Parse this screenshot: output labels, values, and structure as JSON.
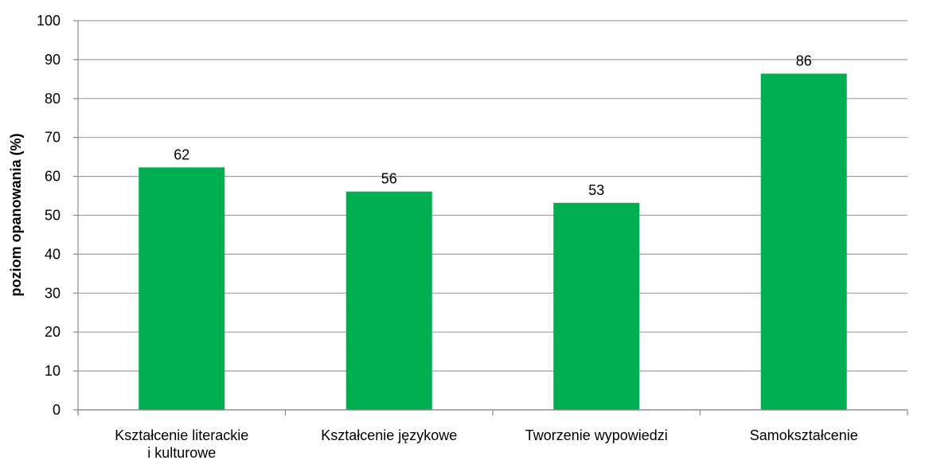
{
  "chart_data": {
    "type": "bar",
    "y_label": "poziom opanowania (%)",
    "categories": [
      "Kształcenie literackie\ni kulturowe",
      "Kształcenie językowe",
      "Tworzenie wypowiedzi",
      "Samokształcenie"
    ],
    "values": [
      62.3,
      56.1,
      53.2,
      86.4
    ],
    "value_labels": [
      "62",
      "56",
      "53",
      "86"
    ],
    "color": "#00b050",
    "ylim": [
      0,
      100
    ],
    "yticks": [
      0,
      10,
      20,
      30,
      40,
      50,
      60,
      70,
      80,
      90,
      100
    ],
    "grid": true
  }
}
